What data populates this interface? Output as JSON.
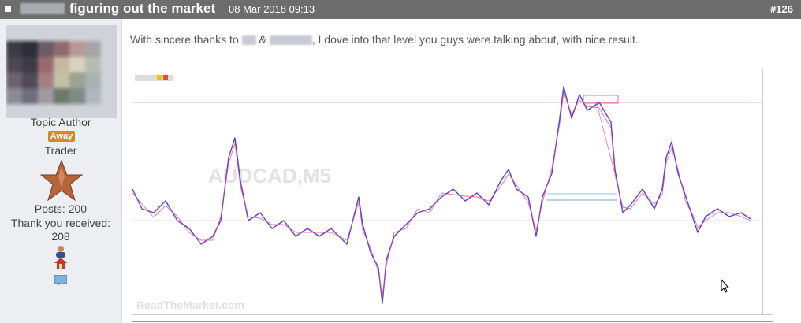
{
  "post": {
    "title": "figuring out the market",
    "date": "08 Mar 2018 09:13",
    "number": "#126",
    "author": {
      "role": "Topic Author",
      "status": "Away",
      "rank": "Trader",
      "posts": "Posts: 200",
      "thanks_label": "Thank you received:",
      "thanks": "208"
    },
    "message": {
      "before": "With sincere thanks to",
      "between": "&",
      "after": ", I dove into that level you guys were talking about, with nice result."
    },
    "chart_image": {
      "symbol": "AUDCAD,M5",
      "watermark": "ReadTheMarket.com"
    }
  }
}
